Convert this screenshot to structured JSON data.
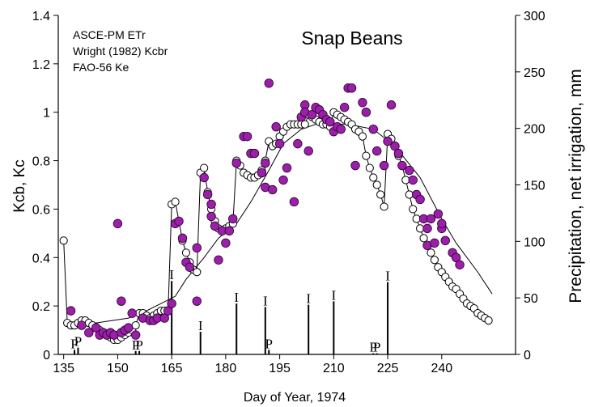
{
  "chart_data": {
    "type": "line",
    "title": "Snap Beans",
    "annotations": [
      "ASCE-PM ETr",
      "Wright (1982) Kcbr",
      "FAO-56 Ke"
    ],
    "xlabel": "Day of Year, 1974",
    "ylabel": "Kcb, Kc",
    "y2label": "Precipitation, net irrigation, mm",
    "xlim": [
      133.5,
      260.5
    ],
    "xticks": [
      135,
      150,
      165,
      180,
      195,
      210,
      225,
      240
    ],
    "ylim": [
      0,
      1.4
    ],
    "yticks": [
      0,
      0.2,
      0.4,
      0.6,
      0.8,
      1,
      1.2,
      1.4
    ],
    "y2lim": [
      0,
      300
    ],
    "y2ticks": [
      0,
      50,
      100,
      150,
      200,
      250,
      300
    ],
    "series": [
      {
        "type": "bar",
        "axis": "y2",
        "color": "#000000",
        "x": [
          138,
          139,
          155,
          156,
          165,
          173,
          183,
          191,
          192,
          203,
          210,
          221,
          222,
          225
        ],
        "values": [
          4,
          6,
          3,
          3,
          65,
          20,
          45,
          42,
          4,
          44,
          47,
          1,
          1,
          64
        ],
        "labels": [
          "P",
          "P",
          "P",
          "P",
          "I",
          "I",
          "I",
          "I",
          "P",
          "I",
          "I",
          "P",
          "P",
          "I"
        ]
      },
      {
        "type": "line",
        "color": "#000000",
        "x": [
          135,
          144,
          153,
          158,
          162,
          166,
          169,
          174,
          178,
          183,
          187,
          192,
          196,
          201,
          205,
          214,
          221,
          227,
          234,
          240,
          244,
          250,
          254
        ],
        "values": [
          0.13,
          0.13,
          0.15,
          0.18,
          0.21,
          0.24,
          0.31,
          0.4,
          0.48,
          0.54,
          0.63,
          0.76,
          0.87,
          0.93,
          0.95,
          0.95,
          0.93,
          0.86,
          0.73,
          0.56,
          0.46,
          0.34,
          0.25
        ]
      },
      {
        "type": "line",
        "marker": "circle",
        "color": "#000000",
        "fill": "#ffffff",
        "x": [
          135,
          136,
          137,
          138,
          139,
          140,
          141,
          142,
          143,
          144,
          145,
          146,
          147,
          148,
          149,
          150,
          151,
          152,
          153,
          154,
          155,
          156,
          157,
          158,
          159,
          160,
          161,
          162,
          163,
          164,
          165,
          166,
          167,
          168,
          169,
          170,
          171,
          172,
          173,
          174,
          175,
          176,
          177,
          178,
          179,
          180,
          181,
          182,
          183,
          184,
          185,
          186,
          187,
          188,
          189,
          190,
          191,
          192,
          193,
          194,
          195,
          196,
          197,
          198,
          199,
          200,
          201,
          202,
          203,
          204,
          205,
          206,
          207,
          208,
          209,
          210,
          211,
          212,
          213,
          214,
          215,
          216,
          217,
          218,
          219,
          220,
          221,
          222,
          223,
          224,
          225,
          226,
          227,
          228,
          229,
          230,
          231,
          232,
          233,
          234,
          235,
          236,
          237,
          238,
          239,
          240,
          241,
          242,
          243,
          244,
          245,
          246,
          247,
          248,
          249,
          250,
          251,
          252,
          253
        ],
        "values": [
          0.47,
          0.13,
          0.12,
          0.12,
          0.13,
          0.14,
          0.14,
          0.13,
          0.12,
          0.11,
          0.1,
          0.09,
          0.08,
          0.07,
          0.06,
          0.06,
          0.07,
          0.08,
          0.09,
          0.1,
          0.12,
          0.17,
          0.17,
          0.16,
          0.15,
          0.16,
          0.17,
          0.18,
          0.18,
          0.18,
          0.62,
          0.63,
          0.55,
          0.47,
          0.42,
          0.38,
          0.35,
          0.34,
          0.75,
          0.77,
          0.67,
          0.6,
          0.55,
          0.52,
          0.51,
          0.52,
          0.53,
          0.54,
          0.8,
          0.78,
          0.75,
          0.74,
          0.73,
          0.73,
          0.74,
          0.76,
          0.8,
          0.88,
          0.86,
          0.87,
          0.9,
          0.92,
          0.94,
          0.95,
          0.95,
          0.95,
          0.95,
          0.95,
          0.99,
          0.98,
          0.97,
          0.96,
          0.95,
          0.95,
          0.94,
          1.0,
          0.99,
          0.98,
          0.97,
          0.96,
          0.95,
          0.93,
          0.92,
          0.9,
          0.82,
          0.77,
          0.73,
          0.7,
          0.66,
          0.61,
          0.91,
          0.89,
          0.86,
          0.82,
          0.78,
          0.72,
          0.66,
          0.6,
          0.56,
          0.52,
          0.48,
          0.45,
          0.42,
          0.39,
          0.36,
          0.34,
          0.32,
          0.3,
          0.28,
          0.27,
          0.25,
          0.23,
          0.21,
          0.2,
          0.19,
          0.17,
          0.16,
          0.15,
          0.14
        ]
      },
      {
        "type": "scatter",
        "color": "#2a0030",
        "fill": "#9b1fa8",
        "x": [
          137,
          140,
          142,
          144,
          145,
          146,
          147,
          148,
          149,
          150,
          151,
          151,
          152,
          153,
          154,
          155,
          157,
          159,
          160,
          161,
          163,
          164,
          165,
          166,
          167,
          168,
          169,
          170,
          172,
          172,
          174,
          175,
          176,
          176,
          177,
          178,
          179,
          180,
          181,
          182,
          183,
          185,
          186,
          187,
          188,
          190,
          191,
          191,
          192,
          193,
          194,
          195,
          196,
          197,
          199,
          200,
          201,
          202,
          202,
          203,
          204,
          205,
          206,
          207,
          208,
          209,
          210,
          211,
          212,
          213,
          214,
          215,
          216,
          218,
          219,
          221,
          222,
          224,
          225,
          226,
          227,
          228,
          229,
          231,
          232,
          233,
          234,
          235,
          236,
          236,
          237,
          238,
          239,
          240,
          240,
          241,
          243,
          244,
          245
        ],
        "values": [
          0.18,
          0.12,
          0.09,
          0.11,
          0.08,
          0.09,
          0.08,
          0.09,
          0.08,
          0.54,
          0.09,
          0.22,
          0.1,
          0.11,
          0.17,
          0.08,
          0.15,
          0.14,
          0.14,
          0.15,
          0.15,
          0.18,
          0.21,
          0.54,
          0.55,
          0.48,
          0.38,
          0.36,
          0.44,
          0.22,
          0.73,
          0.66,
          0.62,
          0.57,
          0.53,
          0.39,
          0.51,
          0.46,
          0.51,
          0.56,
          0.79,
          0.9,
          0.9,
          0.83,
          0.83,
          0.75,
          0.79,
          0.69,
          1.12,
          0.68,
          0.94,
          0.87,
          0.72,
          0.77,
          0.63,
          0.87,
          0.98,
          1.03,
          1.0,
          0.84,
          0.99,
          1.02,
          1.01,
          0.99,
          0.97,
          0.96,
          0.92,
          0.94,
          0.93,
          1.02,
          1.1,
          1.1,
          0.78,
          1.04,
          1.0,
          0.93,
          0.84,
          0.78,
          0.88,
          1.03,
          0.86,
          0.83,
          0.78,
          0.76,
          0.72,
          0.66,
          0.64,
          0.56,
          0.52,
          0.45,
          0.56,
          0.46,
          0.58,
          0.52,
          0.54,
          0.47,
          0.42,
          0.4,
          0.37
        ]
      }
    ]
  }
}
